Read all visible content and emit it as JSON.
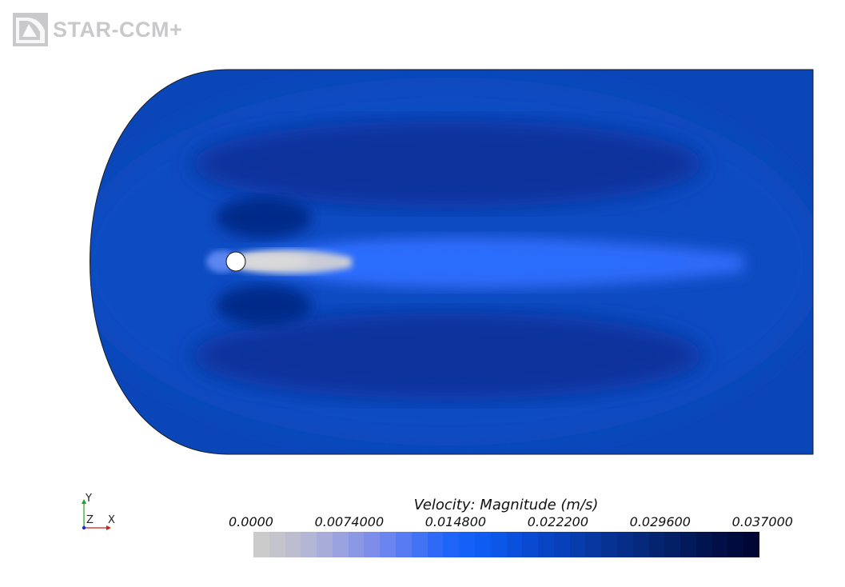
{
  "logo": {
    "text": "STAR-CCM+",
    "icon": "starccm-logo-icon"
  },
  "axes": {
    "y_label": "Y",
    "z_label": "Z",
    "x_label": "X"
  },
  "legend": {
    "title": "Velocity: Magnitude (m/s)",
    "ticks": [
      "0.0000",
      "0.0074000",
      "0.014800",
      "0.022200",
      "0.029600",
      "0.037000"
    ],
    "range": [
      0.0,
      0.037
    ],
    "colors": [
      "#cbcbcb",
      "#c4c4cc",
      "#bcbdcf",
      "#b3b6d4",
      "#a8acd9",
      "#9aa2df",
      "#8b98e4",
      "#7c8eea",
      "#6a85ef",
      "#577bf3",
      "#4373f5",
      "#2f6af7",
      "#1f64f8",
      "#1560f7",
      "#0f5cf3",
      "#0c56e8",
      "#0a50dc",
      "#094ad0",
      "#0845c4",
      "#0740b8",
      "#073cac",
      "#0737a0",
      "#063294",
      "#062e88",
      "#05297c",
      "#042470",
      "#031f65",
      "#02195a",
      "#021450",
      "#010f46",
      "#000b3d",
      "#000735"
    ]
  }
}
